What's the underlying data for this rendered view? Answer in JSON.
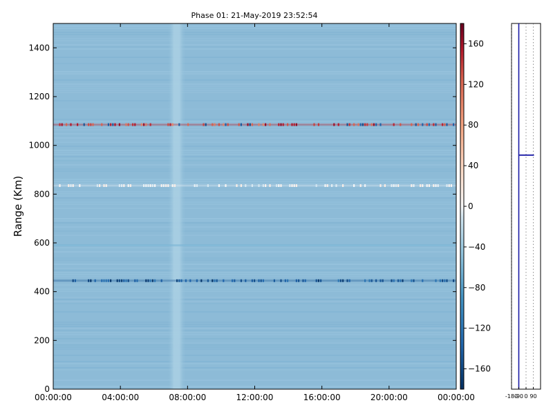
{
  "chart_data": {
    "type": "heatmap",
    "title": "Phase 01: 21-May-2019 23:52:54",
    "ylabel": "Range (Km)",
    "xlabel": "",
    "x_ticks": [
      "00:00:00",
      "04:00:00",
      "08:00:00",
      "12:00:00",
      "16:00:00",
      "20:00:00",
      "00:00:00"
    ],
    "x_range_hours": [
      0,
      24
    ],
    "y_ticks": [
      0,
      200,
      400,
      600,
      800,
      1000,
      1200,
      1400
    ],
    "ylim": [
      0,
      1500
    ],
    "colormap": "RdBu_r",
    "colorbar": {
      "ticks": [
        160,
        120,
        80,
        40,
        0,
        -40,
        -80,
        -120,
        -160
      ],
      "range": [
        -180,
        180
      ]
    },
    "background_phase_deg": -70,
    "vertical_band": {
      "from_hour": 6.8,
      "to_hour": 7.9,
      "phase_deg": -55,
      "label": ""
    },
    "range_lines": [
      {
        "range_km": 1085,
        "phase_deg": 150,
        "style": "red-and-blue speckle"
      },
      {
        "range_km": 835,
        "phase_deg": -5,
        "style": "white speckle"
      },
      {
        "range_km": 590,
        "phase_deg": -60,
        "style": "light band"
      },
      {
        "range_km": 445,
        "phase_deg": -150,
        "style": "dark blue speckle"
      }
    ],
    "side_profile": {
      "x_ticks": [
        "-180",
        "-90",
        "0",
        "90"
      ],
      "xlim": [
        -180,
        180
      ],
      "ylim": [
        0,
        1500
      ],
      "line_phase_deg": -90,
      "step": {
        "range_km": 960,
        "to_phase_deg": 90
      }
    }
  }
}
